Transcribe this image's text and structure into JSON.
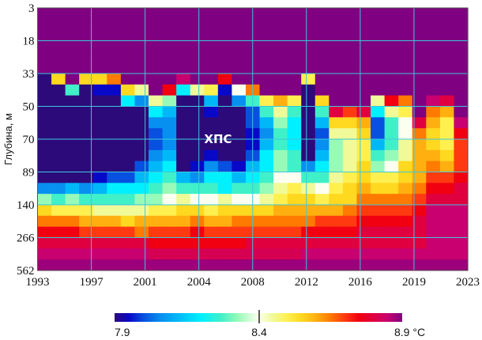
{
  "chart_data": {
    "type": "heatmap",
    "title": "",
    "xlabel": "",
    "ylabel": "Глубина, м",
    "x_tick_labels": [
      "1993",
      "1997",
      "2001",
      "2004",
      "2008",
      "2012",
      "2016",
      "2019",
      "2023"
    ],
    "y_tick_labels": [
      "3",
      "18",
      "33",
      "50",
      "70",
      "89",
      "140",
      "266",
      "562"
    ],
    "n_columns": 31,
    "n_rows": 24,
    "annotation": "ХПС",
    "colorbar": {
      "min": 7.9,
      "mid": 8.4,
      "max": 8.9,
      "tick_labels": [
        "7.9",
        "8.4",
        "8.9 °C"
      ],
      "unit": "°C"
    },
    "colorscale": [
      [
        7.9,
        "#2d0a7a"
      ],
      [
        7.95,
        "#0808c8"
      ],
      [
        8.0,
        "#0850e0"
      ],
      [
        8.06,
        "#0890f0"
      ],
      [
        8.12,
        "#00b8f8"
      ],
      [
        8.2,
        "#00f0ff"
      ],
      [
        8.27,
        "#40f0c8"
      ],
      [
        8.33,
        "#98fab8"
      ],
      [
        8.4,
        "#fcfff0"
      ],
      [
        8.45,
        "#f0fa98"
      ],
      [
        8.5,
        "#fff050"
      ],
      [
        8.55,
        "#ffd820"
      ],
      [
        8.6,
        "#ffb010"
      ],
      [
        8.65,
        "#ff7a00"
      ],
      [
        8.7,
        "#ff3a10"
      ],
      [
        8.75,
        "#f00010"
      ],
      [
        8.8,
        "#e00040"
      ],
      [
        8.85,
        "#c80070"
      ],
      [
        8.9,
        "#7f0080"
      ]
    ],
    "grid_color": "#3cc8dc",
    "values": [
      [
        8.9,
        8.9,
        8.9,
        8.9,
        8.9,
        8.9,
        8.9,
        8.9,
        8.9,
        8.9,
        8.9,
        8.9,
        8.9,
        8.9,
        8.9,
        8.9,
        8.9,
        8.9,
        8.9,
        8.9,
        8.9,
        8.9,
        8.9,
        8.9,
        8.9,
        8.9,
        8.9,
        8.9,
        8.9,
        8.9,
        8.9
      ],
      [
        8.9,
        8.9,
        8.9,
        8.9,
        8.9,
        8.9,
        8.9,
        8.9,
        8.9,
        8.9,
        8.9,
        8.9,
        8.9,
        8.9,
        8.9,
        8.9,
        8.9,
        8.9,
        8.9,
        8.9,
        8.9,
        8.9,
        8.9,
        8.9,
        8.9,
        8.9,
        8.9,
        8.9,
        8.9,
        8.9,
        8.9
      ],
      [
        8.9,
        8.9,
        8.9,
        8.9,
        8.9,
        8.9,
        8.9,
        8.9,
        8.9,
        8.9,
        8.9,
        8.9,
        8.9,
        8.9,
        8.9,
        8.9,
        8.9,
        8.9,
        8.9,
        8.9,
        8.9,
        8.9,
        8.9,
        8.9,
        8.9,
        8.9,
        8.9,
        8.9,
        8.9,
        8.9,
        8.9
      ],
      [
        8.9,
        8.9,
        8.9,
        8.9,
        8.9,
        8.9,
        8.9,
        8.9,
        8.9,
        8.9,
        8.9,
        8.9,
        8.9,
        8.9,
        8.9,
        8.9,
        8.9,
        8.9,
        8.9,
        8.9,
        8.9,
        8.9,
        8.9,
        8.9,
        8.9,
        8.9,
        8.9,
        8.9,
        8.9,
        8.9,
        8.9
      ],
      [
        8.9,
        8.9,
        8.9,
        8.9,
        8.9,
        8.9,
        8.9,
        8.9,
        8.9,
        8.9,
        8.9,
        8.9,
        8.9,
        8.9,
        8.9,
        8.9,
        8.9,
        8.9,
        8.9,
        8.9,
        8.9,
        8.9,
        8.9,
        8.9,
        8.9,
        8.9,
        8.9,
        8.9,
        8.9,
        8.9,
        8.9
      ],
      [
        8.9,
        8.9,
        8.9,
        8.9,
        8.9,
        8.9,
        8.9,
        8.9,
        8.9,
        8.9,
        8.9,
        8.9,
        8.9,
        8.9,
        8.9,
        8.9,
        8.9,
        8.9,
        8.9,
        8.9,
        8.9,
        8.9,
        8.9,
        8.9,
        8.9,
        8.9,
        8.9,
        8.9,
        8.9,
        8.9,
        8.9
      ],
      [
        7.9,
        8.55,
        8.9,
        8.55,
        8.55,
        8.65,
        8.9,
        8.9,
        8.9,
        8.9,
        8.85,
        8.9,
        8.9,
        8.75,
        8.9,
        8.9,
        8.9,
        8.9,
        8.9,
        8.5,
        8.9,
        8.9,
        8.9,
        8.9,
        8.9,
        8.9,
        8.9,
        8.9,
        8.9,
        8.9,
        8.9
      ],
      [
        7.9,
        7.9,
        8.27,
        7.9,
        7.95,
        7.95,
        8.55,
        8.45,
        8.9,
        8.75,
        8.2,
        8.45,
        8.5,
        7.95,
        8.4,
        8.65,
        8.9,
        8.9,
        8.9,
        7.9,
        8.9,
        8.9,
        8.9,
        8.9,
        8.9,
        8.9,
        8.9,
        8.9,
        8.9,
        8.9,
        8.9
      ],
      [
        7.9,
        7.9,
        7.9,
        7.9,
        7.9,
        7.9,
        8.2,
        8.06,
        8.45,
        8.33,
        7.9,
        7.9,
        8.12,
        7.9,
        8.06,
        8.27,
        8.5,
        8.6,
        8.5,
        7.9,
        8.55,
        8.9,
        8.9,
        8.9,
        8.45,
        8.75,
        8.65,
        8.9,
        8.85,
        8.8,
        8.9
      ],
      [
        7.9,
        7.9,
        7.9,
        7.9,
        7.9,
        7.9,
        7.9,
        7.9,
        8.2,
        8.12,
        7.9,
        7.9,
        7.95,
        7.9,
        7.9,
        8.0,
        8.27,
        8.45,
        8.27,
        7.9,
        8.27,
        8.8,
        8.7,
        8.8,
        8.2,
        8.45,
        8.5,
        8.9,
        8.65,
        8.6,
        8.9
      ],
      [
        7.9,
        7.9,
        7.9,
        7.9,
        7.9,
        7.9,
        7.9,
        7.9,
        8.06,
        8.06,
        7.9,
        7.9,
        7.9,
        7.9,
        7.9,
        8.0,
        8.12,
        8.33,
        8.2,
        7.9,
        8.12,
        8.55,
        8.55,
        8.6,
        8.0,
        8.27,
        8.4,
        8.8,
        8.6,
        8.5,
        8.85
      ],
      [
        7.9,
        7.9,
        7.9,
        7.9,
        7.9,
        7.9,
        7.9,
        7.9,
        8.0,
        8.06,
        7.9,
        7.9,
        7.9,
        7.9,
        7.9,
        7.95,
        8.06,
        8.27,
        8.2,
        7.9,
        8.0,
        8.45,
        8.45,
        8.55,
        8.0,
        8.27,
        8.4,
        8.65,
        8.55,
        8.5,
        8.75
      ],
      [
        7.9,
        7.9,
        7.9,
        7.9,
        7.9,
        7.9,
        7.9,
        7.9,
        8.0,
        8.06,
        7.9,
        7.9,
        7.9,
        7.9,
        7.9,
        7.95,
        8.12,
        8.27,
        8.2,
        7.9,
        8.06,
        8.33,
        8.45,
        8.5,
        8.12,
        8.27,
        8.45,
        8.6,
        8.55,
        8.5,
        8.7
      ],
      [
        7.9,
        7.9,
        7.9,
        7.9,
        7.9,
        7.9,
        7.9,
        7.9,
        8.06,
        8.12,
        7.9,
        7.9,
        7.95,
        7.9,
        7.9,
        8.0,
        8.2,
        8.33,
        8.27,
        7.9,
        8.12,
        8.33,
        8.45,
        8.5,
        8.27,
        8.33,
        8.45,
        8.6,
        8.6,
        8.55,
        8.7
      ],
      [
        7.9,
        7.9,
        7.9,
        7.9,
        7.9,
        7.9,
        7.9,
        8.0,
        8.12,
        8.2,
        7.9,
        7.95,
        8.06,
        8.0,
        7.95,
        8.12,
        8.2,
        8.33,
        8.27,
        8.06,
        8.2,
        8.33,
        8.45,
        8.55,
        8.33,
        8.4,
        8.55,
        8.6,
        8.65,
        8.6,
        8.7
      ],
      [
        7.9,
        7.9,
        7.9,
        7.9,
        7.95,
        8.0,
        8.0,
        8.12,
        8.2,
        8.27,
        8.12,
        8.06,
        8.2,
        8.2,
        8.12,
        8.2,
        8.27,
        8.4,
        8.4,
        8.27,
        8.27,
        8.45,
        8.5,
        8.55,
        8.5,
        8.5,
        8.55,
        8.6,
        8.7,
        8.7,
        8.75
      ],
      [
        8.06,
        8.06,
        8.12,
        8.06,
        8.12,
        8.2,
        8.2,
        8.2,
        8.27,
        8.33,
        8.27,
        8.27,
        8.27,
        8.2,
        8.27,
        8.27,
        8.33,
        8.45,
        8.5,
        8.45,
        8.4,
        8.5,
        8.55,
        8.6,
        8.55,
        8.55,
        8.6,
        8.65,
        8.75,
        8.75,
        8.8
      ],
      [
        8.33,
        8.27,
        8.33,
        8.27,
        8.27,
        8.27,
        8.27,
        8.33,
        8.33,
        8.4,
        8.45,
        8.4,
        8.4,
        8.45,
        8.4,
        8.4,
        8.45,
        8.5,
        8.55,
        8.55,
        8.5,
        8.55,
        8.55,
        8.65,
        8.65,
        8.65,
        8.65,
        8.7,
        8.8,
        8.8,
        8.8
      ],
      [
        8.55,
        8.5,
        8.5,
        8.5,
        8.45,
        8.45,
        8.45,
        8.45,
        8.5,
        8.5,
        8.55,
        8.55,
        8.5,
        8.55,
        8.55,
        8.55,
        8.55,
        8.6,
        8.6,
        8.6,
        8.6,
        8.6,
        8.65,
        8.7,
        8.7,
        8.7,
        8.7,
        8.75,
        8.85,
        8.85,
        8.85
      ],
      [
        8.65,
        8.65,
        8.65,
        8.6,
        8.6,
        8.6,
        8.55,
        8.6,
        8.6,
        8.6,
        8.6,
        8.65,
        8.6,
        8.6,
        8.65,
        8.65,
        8.65,
        8.65,
        8.65,
        8.65,
        8.7,
        8.7,
        8.7,
        8.75,
        8.75,
        8.75,
        8.75,
        8.8,
        8.85,
        8.85,
        8.85
      ],
      [
        8.75,
        8.75,
        8.75,
        8.7,
        8.7,
        8.7,
        8.7,
        8.65,
        8.7,
        8.7,
        8.7,
        8.75,
        8.7,
        8.7,
        8.7,
        8.7,
        8.7,
        8.7,
        8.7,
        8.75,
        8.75,
        8.75,
        8.75,
        8.8,
        8.8,
        8.8,
        8.8,
        8.8,
        8.85,
        8.85,
        8.85
      ],
      [
        8.8,
        8.8,
        8.8,
        8.8,
        8.8,
        8.8,
        8.8,
        8.8,
        8.75,
        8.75,
        8.75,
        8.75,
        8.75,
        8.75,
        8.75,
        8.8,
        8.8,
        8.8,
        8.8,
        8.8,
        8.8,
        8.8,
        8.8,
        8.8,
        8.8,
        8.8,
        8.8,
        8.8,
        8.85,
        8.85,
        8.85
      ],
      [
        8.85,
        8.85,
        8.85,
        8.85,
        8.85,
        8.85,
        8.85,
        8.85,
        8.82,
        8.82,
        8.82,
        8.82,
        8.82,
        8.82,
        8.82,
        8.82,
        8.82,
        8.82,
        8.82,
        8.85,
        8.85,
        8.85,
        8.85,
        8.85,
        8.85,
        8.85,
        8.85,
        8.85,
        8.85,
        8.85,
        8.85
      ],
      [
        8.88,
        8.88,
        8.88,
        8.88,
        8.88,
        8.88,
        8.88,
        8.88,
        8.88,
        8.88,
        8.88,
        8.88,
        8.88,
        8.88,
        8.88,
        8.88,
        8.88,
        8.88,
        8.88,
        8.88,
        8.88,
        8.88,
        8.88,
        8.88,
        8.88,
        8.88,
        8.88,
        8.88,
        8.88,
        8.88,
        8.88
      ]
    ]
  }
}
